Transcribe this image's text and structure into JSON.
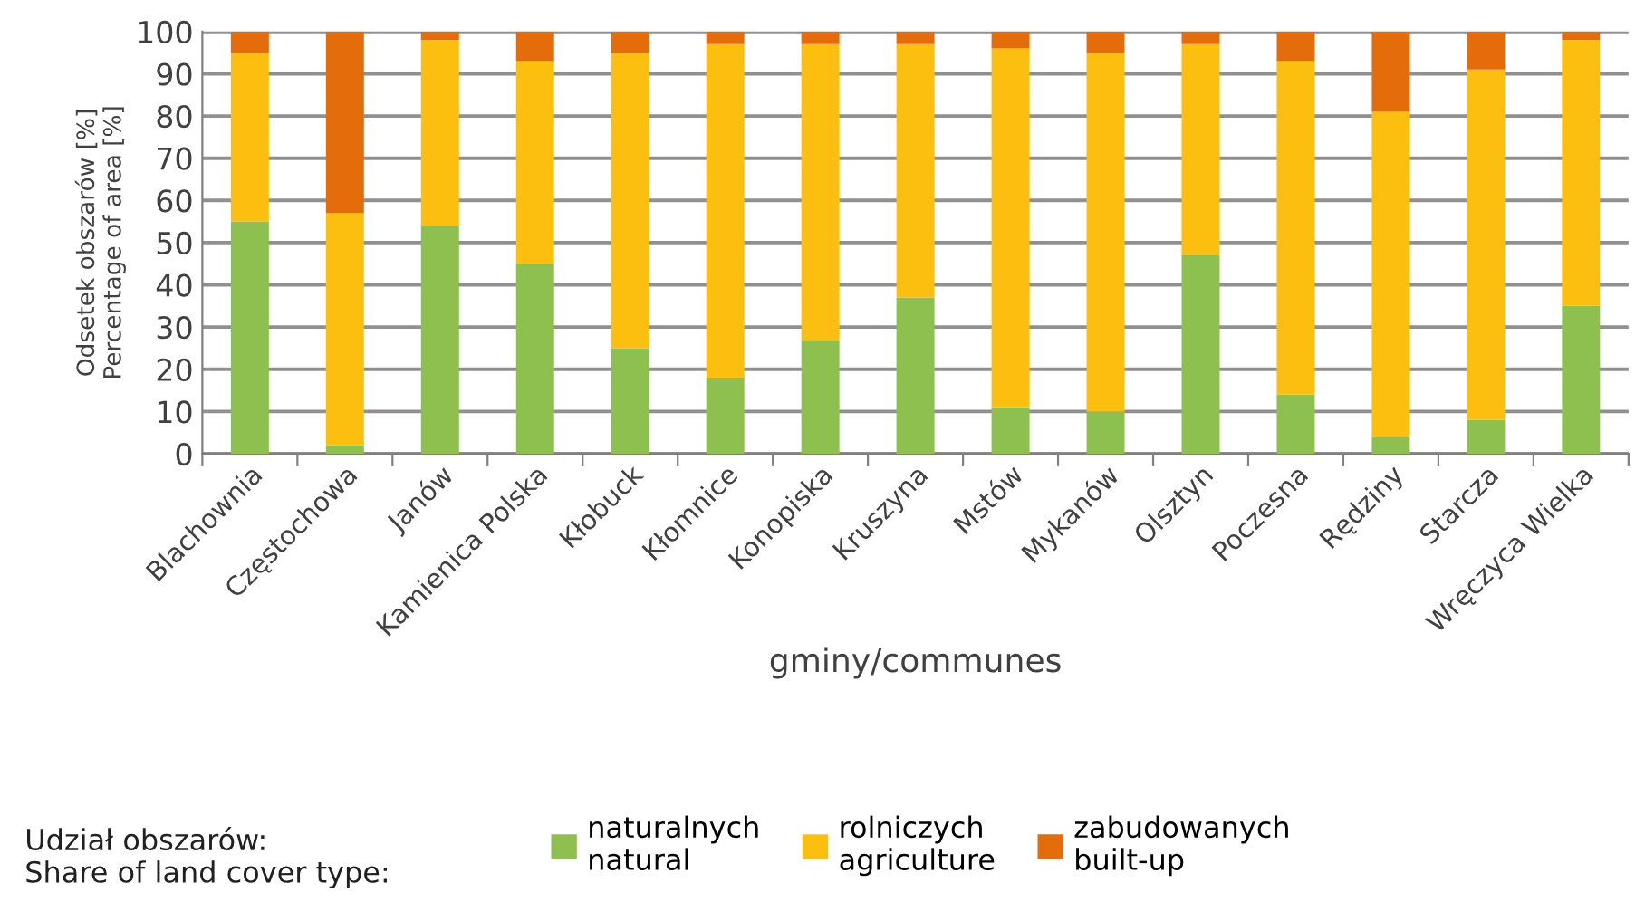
{
  "chart_data": {
    "type": "bar",
    "stacked": true,
    "xlabel": "gminy/communes",
    "ylabel": "Odsetek obszarów [%]\nPercentage of area [%]",
    "legend_title": "Udział obszarów:\nShare of land cover type:",
    "categories": [
      "Blachownia",
      "Częstochowa",
      "Janów",
      "Kamienica Polska",
      "Kłobuck",
      "Kłomnice",
      "Konopiska",
      "Kruszyna",
      "Mstów",
      "Mykanów",
      "Olsztyn",
      "Poczesna",
      "Rędziny",
      "Starcza",
      "Wręczyca Wielka"
    ],
    "series": [
      {
        "name": "naturalnych\nnatural",
        "color": "#8dc04f",
        "values": [
          55,
          2,
          54,
          45,
          25,
          18,
          27,
          37,
          11,
          10,
          47,
          14,
          4,
          8,
          35
        ]
      },
      {
        "name": "rolniczych\nagriculture",
        "color": "#fcbf10",
        "values": [
          40,
          55,
          44,
          48,
          70,
          79,
          70,
          60,
          85,
          85,
          50,
          79,
          77,
          83,
          63
        ]
      },
      {
        "name": "zabudowanych\nbuilt-up",
        "color": "#e46c0a",
        "values": [
          5,
          43,
          2,
          7,
          5,
          3,
          3,
          3,
          4,
          5,
          3,
          7,
          19,
          9,
          2
        ]
      }
    ],
    "ylim": [
      0,
      100
    ],
    "yticks": [
      0,
      10,
      20,
      30,
      40,
      50,
      60,
      70,
      80,
      90,
      100
    ],
    "grid": "y",
    "legend": "bottom"
  }
}
